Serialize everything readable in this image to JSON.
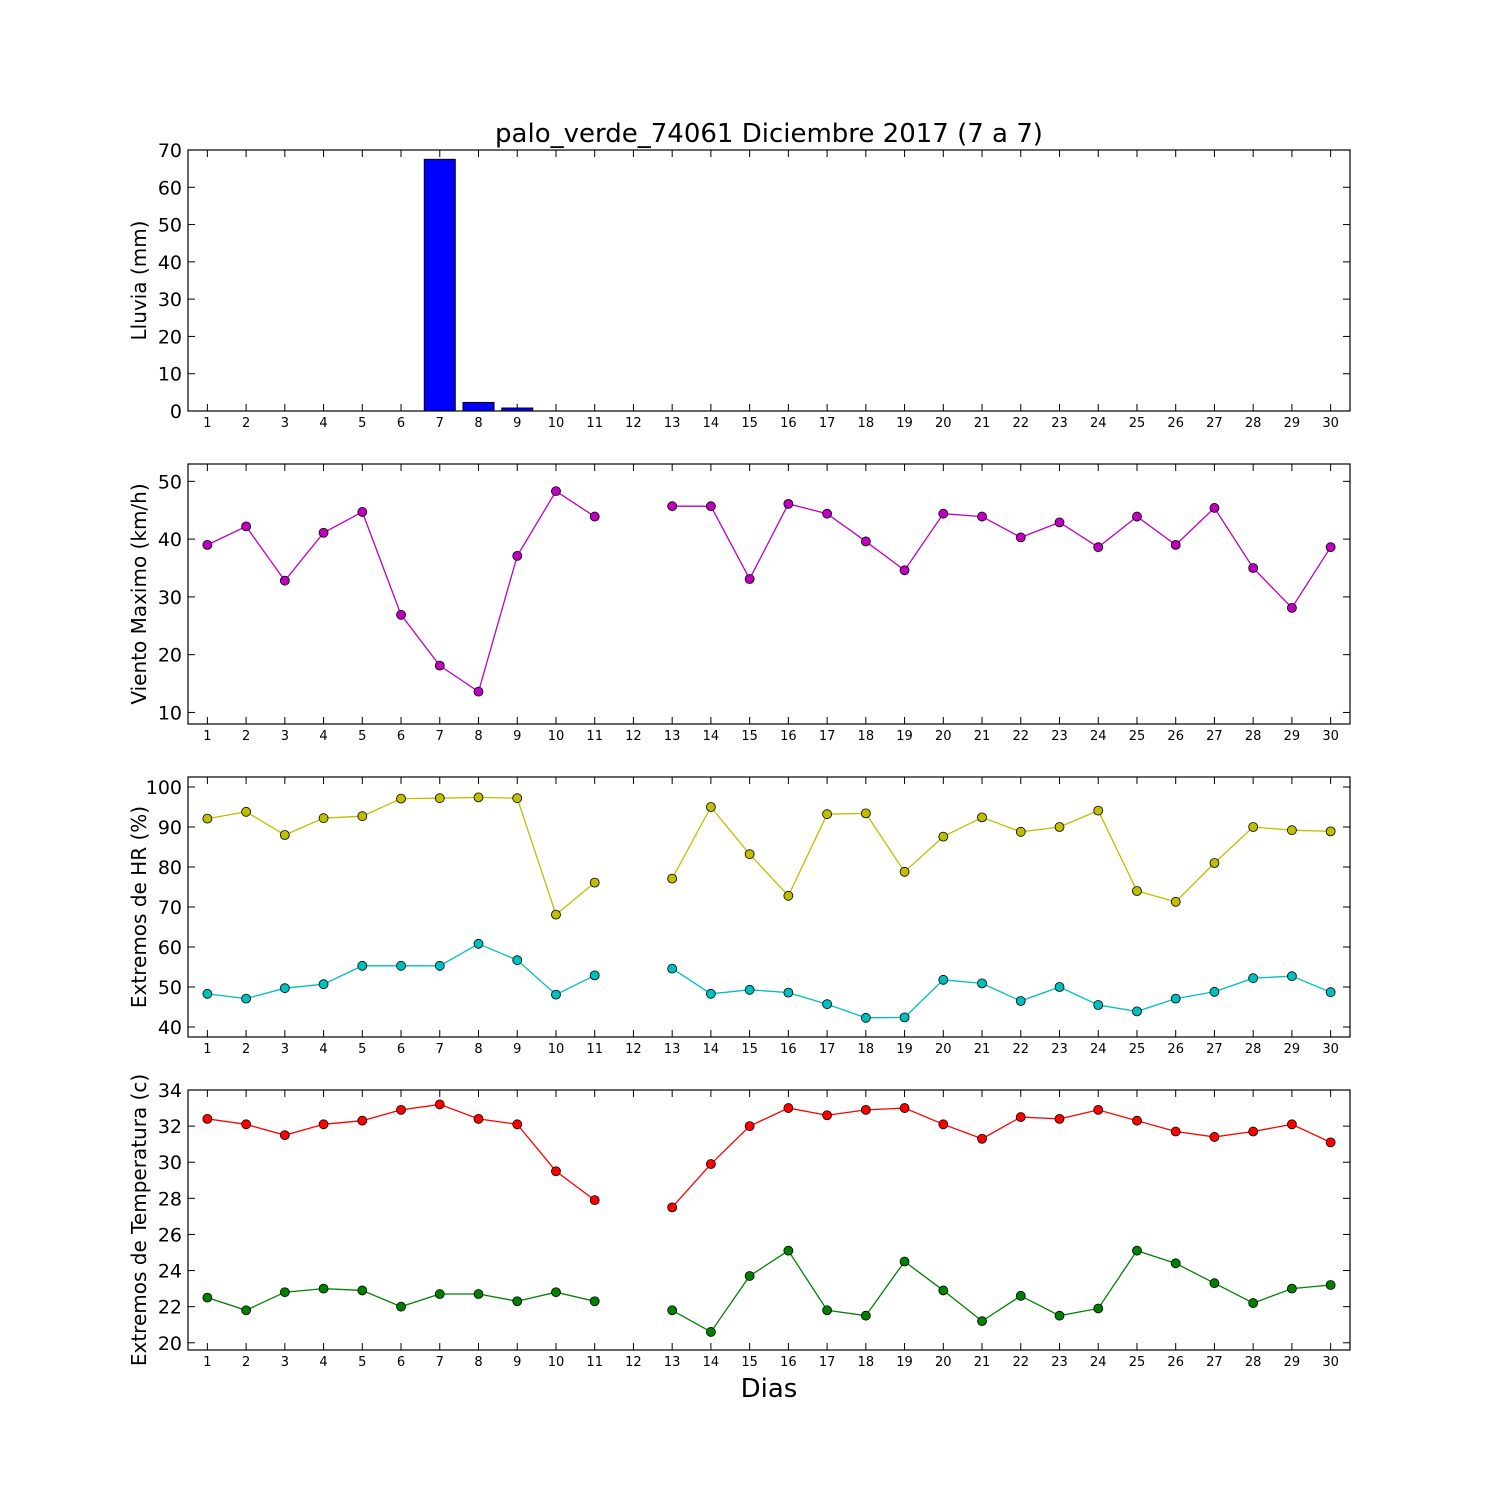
{
  "title": "palo_verde_74061 Diciembre 2017  (7 a 7)",
  "xlabel": "Dias",
  "colors": {
    "lluvia": "#0000ff",
    "viento": "#bf00bf",
    "hr_max": "#bfbf00",
    "hr_min": "#00bfbf",
    "temp_max": "#ff0000",
    "temp_min": "#008000"
  },
  "chart_data": [
    {
      "type": "bar",
      "ylabel": "Lluvia (mm)",
      "ylim": [
        0,
        70
      ],
      "yticks": [
        0,
        10,
        20,
        30,
        40,
        50,
        60,
        70
      ],
      "categories": [
        1,
        2,
        3,
        4,
        5,
        6,
        7,
        8,
        9,
        10,
        11,
        12,
        13,
        14,
        15,
        16,
        17,
        18,
        19,
        20,
        21,
        22,
        23,
        24,
        25,
        26,
        27,
        28,
        29,
        30
      ],
      "values": [
        0,
        0,
        0,
        0,
        0,
        0,
        67.5,
        2.3,
        0.8,
        0,
        0,
        0,
        0,
        0,
        0,
        0,
        0,
        0,
        0,
        0,
        0,
        0,
        0,
        0,
        0,
        0,
        0,
        0,
        0,
        0
      ]
    },
    {
      "type": "line",
      "ylabel": "Viento Maximo (km/h)",
      "ylim": [
        8,
        53
      ],
      "yticks": [
        10,
        20,
        30,
        40,
        50
      ],
      "x": [
        1,
        2,
        3,
        4,
        5,
        6,
        7,
        8,
        9,
        10,
        11,
        12,
        13,
        14,
        15,
        16,
        17,
        18,
        19,
        20,
        21,
        22,
        23,
        24,
        25,
        26,
        27,
        28,
        29,
        30
      ],
      "series": [
        {
          "color_key": "viento",
          "values": [
            39.0,
            42.2,
            32.8,
            41.1,
            44.7,
            26.9,
            18.1,
            13.6,
            37.1,
            48.3,
            43.9,
            null,
            45.7,
            45.7,
            33.1,
            46.1,
            44.4,
            39.6,
            34.6,
            44.4,
            43.9,
            40.3,
            42.9,
            38.6,
            43.9,
            39.0,
            45.4,
            35.0,
            28.1,
            38.6
          ]
        }
      ]
    },
    {
      "type": "line",
      "ylabel": "Extremos de HR (%)",
      "ylim": [
        37.5,
        102.5
      ],
      "yticks": [
        40,
        50,
        60,
        70,
        80,
        90,
        100
      ],
      "x": [
        1,
        2,
        3,
        4,
        5,
        6,
        7,
        8,
        9,
        10,
        11,
        12,
        13,
        14,
        15,
        16,
        17,
        18,
        19,
        20,
        21,
        22,
        23,
        24,
        25,
        26,
        27,
        28,
        29,
        30
      ],
      "series": [
        {
          "color_key": "hr_max",
          "values": [
            92.1,
            93.8,
            88.0,
            92.2,
            92.7,
            97.1,
            97.2,
            97.4,
            97.2,
            68.1,
            76.1,
            null,
            77.1,
            95.0,
            83.2,
            72.8,
            93.2,
            93.4,
            78.8,
            87.6,
            92.4,
            88.8,
            90.0,
            94.1,
            74.0,
            71.3,
            81.0,
            90.0,
            89.2,
            88.9
          ]
        },
        {
          "color_key": "hr_min",
          "values": [
            48.3,
            47.1,
            49.7,
            50.7,
            55.3,
            55.3,
            55.3,
            60.8,
            56.7,
            48.1,
            52.9,
            null,
            54.6,
            48.3,
            49.3,
            48.6,
            45.7,
            42.3,
            42.4,
            51.8,
            50.9,
            46.5,
            50.0,
            45.5,
            43.9,
            47.1,
            48.8,
            52.2,
            52.7,
            48.7
          ]
        }
      ]
    },
    {
      "type": "line",
      "ylabel": "Extremos de Temperatura (c)",
      "ylim": [
        19.6,
        34.0
      ],
      "yticks": [
        20,
        22,
        24,
        26,
        28,
        30,
        32,
        34
      ],
      "x": [
        1,
        2,
        3,
        4,
        5,
        6,
        7,
        8,
        9,
        10,
        11,
        12,
        13,
        14,
        15,
        16,
        17,
        18,
        19,
        20,
        21,
        22,
        23,
        24,
        25,
        26,
        27,
        28,
        29,
        30
      ],
      "series": [
        {
          "color_key": "temp_max",
          "values": [
            32.4,
            32.1,
            31.5,
            32.1,
            32.3,
            32.9,
            33.2,
            32.4,
            32.1,
            29.5,
            27.9,
            null,
            27.5,
            29.9,
            32.0,
            33.0,
            32.6,
            32.9,
            33.0,
            32.1,
            31.3,
            32.5,
            32.4,
            32.9,
            32.3,
            31.7,
            31.4,
            31.7,
            32.1,
            31.1
          ]
        },
        {
          "color_key": "temp_min",
          "values": [
            22.5,
            21.8,
            22.8,
            23.0,
            22.9,
            22.0,
            22.7,
            22.7,
            22.3,
            22.8,
            22.3,
            null,
            21.8,
            20.6,
            23.7,
            25.1,
            21.8,
            21.5,
            24.5,
            22.9,
            21.2,
            22.6,
            21.5,
            21.9,
            25.1,
            24.4,
            23.3,
            22.2,
            23.0,
            23.2
          ]
        }
      ]
    }
  ]
}
